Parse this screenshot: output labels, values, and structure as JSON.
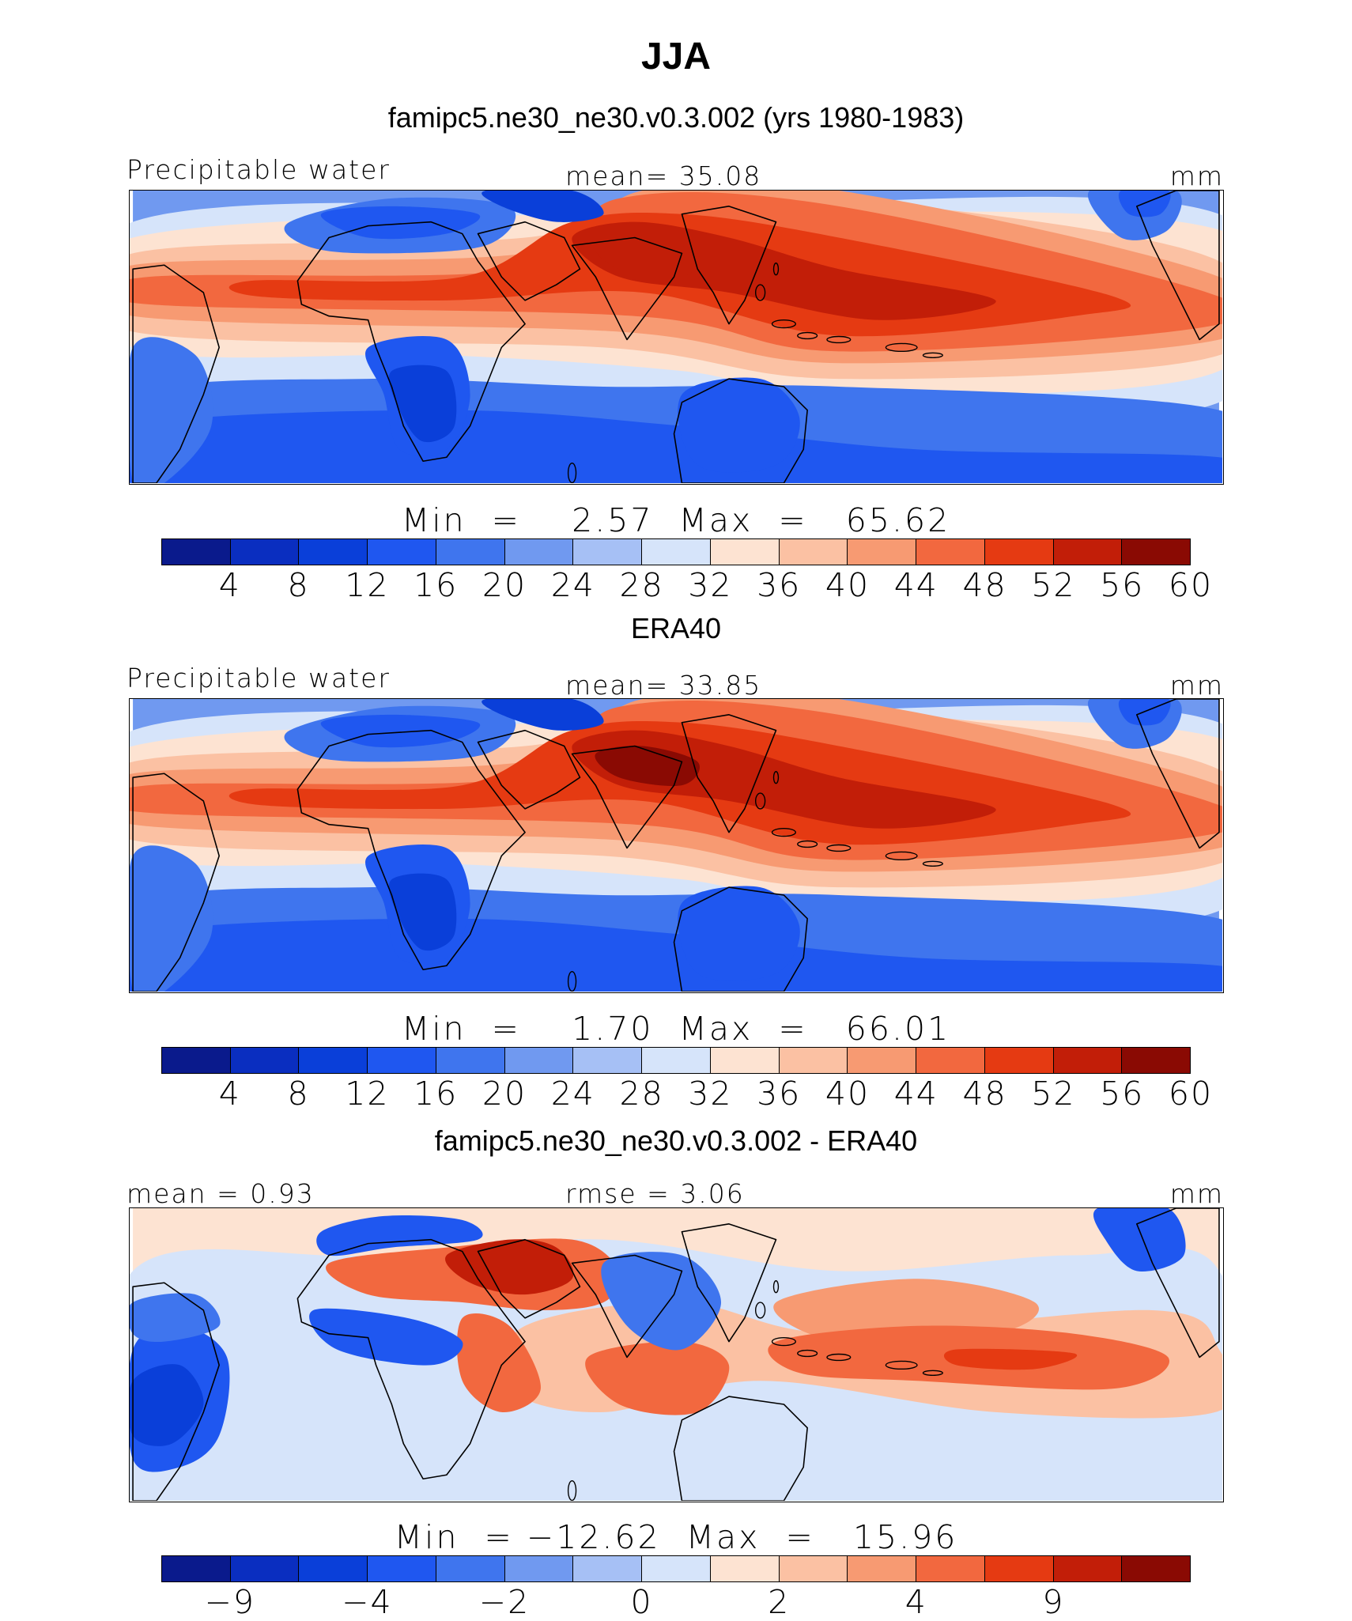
{
  "figure": {
    "title": "JJA",
    "panels": [
      {
        "subtitle": "famipc5.ne30_ne30.v0.3.002 (yrs 1980-1983)",
        "left_label": "Precipitable water",
        "center_label": "mean=   35.08",
        "right_label": "mm",
        "stats_line": "Min  =    2.57  Max  =   65.62",
        "colorbar_ticks": [
          "4",
          "8",
          "12",
          "16",
          "20",
          "24",
          "28",
          "32",
          "36",
          "40",
          "44",
          "48",
          "52",
          "56",
          "60"
        ],
        "field": "model"
      },
      {
        "subtitle": "ERA40",
        "left_label": "Precipitable water",
        "center_label": "mean=   33.85",
        "right_label": "mm",
        "stats_line": "Min  =    1.70  Max  =   66.01",
        "colorbar_ticks": [
          "4",
          "8",
          "12",
          "16",
          "20",
          "24",
          "28",
          "32",
          "36",
          "40",
          "44",
          "48",
          "52",
          "56",
          "60"
        ],
        "field": "obs"
      },
      {
        "subtitle": "famipc5.ne30_ne30.v0.3.002 - ERA40",
        "left_label": "mean =    0.93",
        "center_label": "rmse  =    3.06",
        "right_label": "mm",
        "stats_line": "Min  = −12.62  Max  =   15.96",
        "colorbar_ticks": [
          "−9",
          "",
          "−4",
          "",
          "−2",
          "",
          "0",
          "",
          "2",
          "",
          "4",
          "",
          "9",
          "",
          ""
        ],
        "field": "diff"
      }
    ]
  },
  "colors": {
    "scale": [
      "#0a1a8c",
      "#0a2ec0",
      "#0a3fd9",
      "#1f57f0",
      "#3f75ee",
      "#7099f0",
      "#a6c0f5",
      "#d6e4fa",
      "#fde3d2",
      "#fbc1a3",
      "#f79a72",
      "#f2683f",
      "#e53a12",
      "#c21e08",
      "#8a0a03"
    ]
  }
}
